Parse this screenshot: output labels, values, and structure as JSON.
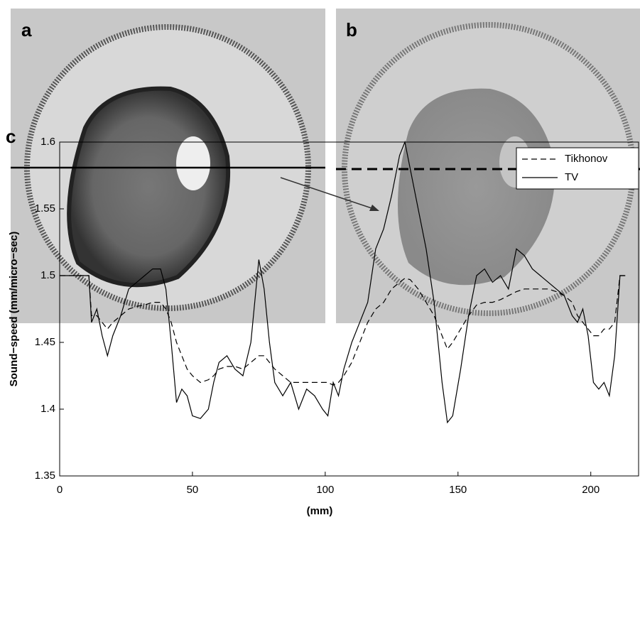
{
  "panel_labels": [
    "a",
    "b"
  ],
  "chart_data": {
    "type": "line",
    "label": "c",
    "xlabel": "(mm)",
    "ylabel": "Sound−speed (mm/micro−sec)",
    "xlim": [
      0,
      218
    ],
    "ylim": [
      1.35,
      1.6
    ],
    "xticks": [
      0,
      50,
      100,
      150,
      200
    ],
    "yticks": [
      1.35,
      1.4,
      1.45,
      1.5,
      1.55,
      1.6
    ],
    "legend": "upper-right",
    "x": [
      0,
      11,
      12,
      14,
      16,
      18,
      20,
      23,
      26,
      29,
      32,
      35,
      38,
      40,
      42,
      44,
      46,
      48,
      50,
      53,
      56,
      58,
      60,
      63,
      66,
      69,
      72,
      75,
      77,
      79,
      81,
      84,
      87,
      90,
      93,
      96,
      99,
      101,
      103,
      105,
      107,
      110,
      113,
      116,
      119,
      122,
      125,
      128,
      130,
      132,
      135,
      138,
      141,
      144,
      146,
      148,
      151,
      154,
      157,
      160,
      163,
      166,
      169,
      172,
      175,
      178,
      181,
      184,
      187,
      190,
      193,
      195,
      197,
      199,
      201,
      203,
      205,
      207,
      209,
      211,
      213
    ],
    "series": [
      {
        "name": "Tikhonov",
        "color": "#000000",
        "dash": "dashed",
        "values": [
          1.5,
          1.5,
          1.47,
          1.47,
          1.465,
          1.46,
          1.465,
          1.47,
          1.475,
          1.477,
          1.478,
          1.48,
          1.48,
          1.475,
          1.465,
          1.45,
          1.44,
          1.43,
          1.425,
          1.42,
          1.422,
          1.425,
          1.43,
          1.432,
          1.432,
          1.43,
          1.435,
          1.44,
          1.44,
          1.435,
          1.43,
          1.425,
          1.42,
          1.42,
          1.42,
          1.42,
          1.42,
          1.42,
          1.418,
          1.42,
          1.425,
          1.435,
          1.45,
          1.465,
          1.475,
          1.48,
          1.49,
          1.495,
          1.498,
          1.497,
          1.49,
          1.48,
          1.47,
          1.455,
          1.445,
          1.45,
          1.46,
          1.47,
          1.478,
          1.48,
          1.48,
          1.482,
          1.485,
          1.488,
          1.49,
          1.49,
          1.49,
          1.49,
          1.488,
          1.485,
          1.48,
          1.47,
          1.465,
          1.46,
          1.455,
          1.455,
          1.46,
          1.46,
          1.465,
          1.5,
          1.5
        ]
      },
      {
        "name": "TV",
        "color": "#000000",
        "dash": "solid",
        "values": [
          1.5,
          1.5,
          1.465,
          1.475,
          1.455,
          1.44,
          1.455,
          1.47,
          1.49,
          1.495,
          1.5,
          1.505,
          1.505,
          1.49,
          1.45,
          1.405,
          1.415,
          1.41,
          1.395,
          1.393,
          1.4,
          1.42,
          1.435,
          1.44,
          1.43,
          1.425,
          1.45,
          1.512,
          1.49,
          1.45,
          1.42,
          1.41,
          1.42,
          1.4,
          1.415,
          1.41,
          1.4,
          1.395,
          1.42,
          1.41,
          1.43,
          1.45,
          1.465,
          1.48,
          1.52,
          1.535,
          1.56,
          1.59,
          1.6,
          1.58,
          1.55,
          1.52,
          1.48,
          1.42,
          1.39,
          1.395,
          1.43,
          1.47,
          1.5,
          1.505,
          1.495,
          1.5,
          1.49,
          1.52,
          1.515,
          1.505,
          1.5,
          1.495,
          1.49,
          1.485,
          1.47,
          1.465,
          1.475,
          1.455,
          1.42,
          1.415,
          1.42,
          1.41,
          1.44,
          1.5,
          1.5
        ]
      }
    ]
  }
}
